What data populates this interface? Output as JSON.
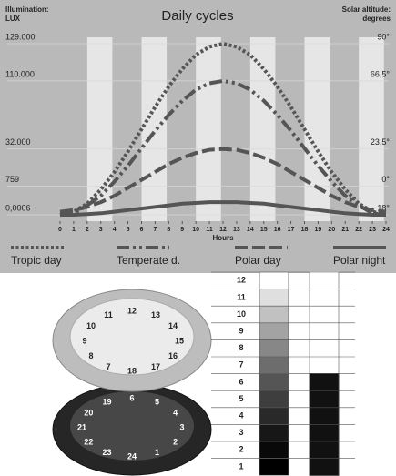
{
  "chart_data": {
    "type": "line",
    "title": "Daily cycles",
    "ylabel": [
      "Illumination:",
      "LUX"
    ],
    "y2label": [
      "Solar altitude:",
      "degrees"
    ],
    "xlabel": "Hours",
    "x": [
      0,
      1,
      2,
      3,
      4,
      5,
      6,
      7,
      8,
      9,
      10,
      11,
      12,
      13,
      14,
      15,
      16,
      17,
      18,
      19,
      20,
      21,
      22,
      23,
      24
    ],
    "xlim": [
      0,
      24
    ],
    "xticks": [
      0,
      1,
      2,
      3,
      4,
      5,
      6,
      7,
      8,
      9,
      10,
      11,
      12,
      13,
      14,
      15,
      16,
      17,
      18,
      19,
      20,
      21,
      22,
      23,
      24
    ],
    "yticks": [
      {
        "value": 0.0006,
        "label": "0,0006"
      },
      759,
      {
        "value": 32000,
        "label": "32.000"
      },
      {
        "value": 110000,
        "label": "110.000"
      },
      {
        "value": 129000,
        "label": "129.000"
      }
    ],
    "y2lim": [
      -22,
      94
    ],
    "y2ticks": [
      {
        "value": -18,
        "label": "−18°"
      },
      {
        "value": 0,
        "label": "0°"
      },
      {
        "value": 23.5,
        "label": "23,5°"
      },
      {
        "value": 66.5,
        "label": "66,5°"
      },
      {
        "value": 90,
        "label": "90°"
      }
    ],
    "grid": true,
    "series": [
      {
        "name": "Tropic day",
        "color": "#555555",
        "style": "dotted",
        "axis": "y2",
        "values": [
          -18,
          -16,
          -11,
          -2,
          9,
          22,
          36,
          50,
          63,
          74,
          83,
          88,
          90,
          88,
          83,
          74,
          63,
          50,
          36,
          22,
          9,
          -2,
          -11,
          -16,
          -18
        ]
      },
      {
        "name": "Temperate d.",
        "color": "#555555",
        "style": "dash-dot",
        "axis": "y2",
        "values": [
          -18,
          -17,
          -12,
          -6,
          3,
          13,
          24,
          35,
          45,
          54,
          61,
          65,
          66.5,
          65,
          61,
          54,
          45,
          35,
          24,
          13,
          3,
          -6,
          -12,
          -17,
          -18
        ]
      },
      {
        "name": "Polar day",
        "color": "#555555",
        "style": "dashed",
        "axis": "y2",
        "values": [
          -16,
          -15,
          -13,
          -10,
          -6,
          -1,
          4,
          9,
          14,
          18,
          21,
          23,
          23.5,
          23,
          21,
          18,
          14,
          9,
          4,
          -1,
          -6,
          -10,
          -13,
          -15,
          -16
        ]
      },
      {
        "name": "Polar night",
        "color": "#555555",
        "style": "solid",
        "axis": "y2",
        "values": [
          -18,
          -18,
          -17.5,
          -17,
          -16,
          -15,
          -14,
          -13,
          -12,
          -11,
          -10.5,
          -10,
          -10,
          -10,
          -10.5,
          -11,
          -12,
          -13,
          -14,
          -15,
          -16,
          -17,
          -17.5,
          -18,
          -18
        ]
      }
    ]
  },
  "diagram": {
    "upper_dial": [
      7,
      8,
      9,
      10,
      11,
      12,
      13,
      14,
      15,
      16,
      17,
      18
    ],
    "lower_dial": [
      19,
      20,
      21,
      22,
      23,
      24,
      1,
      2,
      3,
      4,
      5,
      6
    ],
    "scale": [
      12,
      11,
      10,
      9,
      8,
      7,
      6,
      5,
      4,
      3,
      2,
      1
    ]
  }
}
